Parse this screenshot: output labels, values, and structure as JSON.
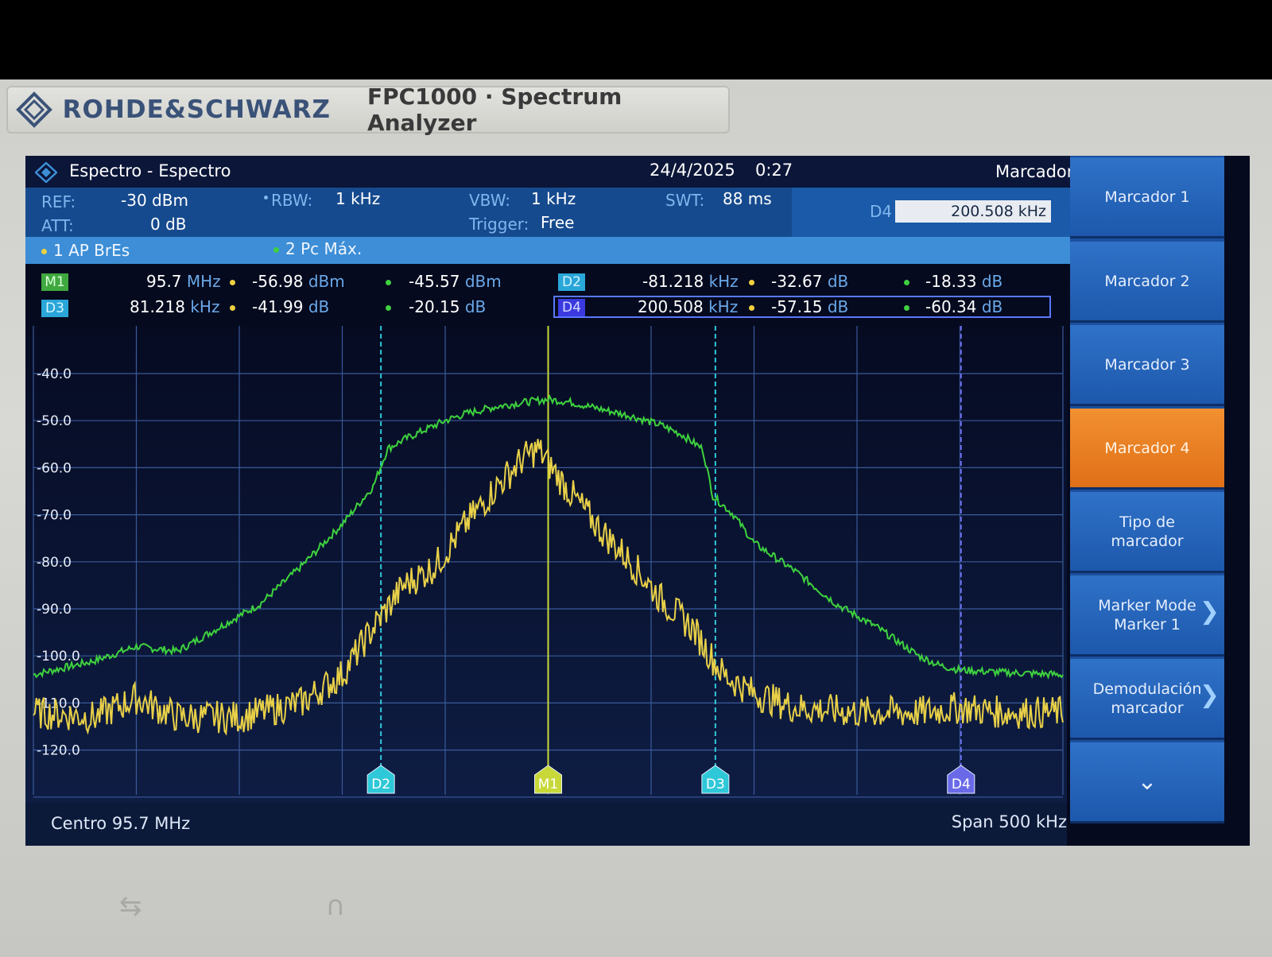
{
  "device": {
    "brand": "ROHDE&SCHWARZ",
    "model": "FPC1000 · Spectrum Analyzer"
  },
  "title_bar": {
    "title": "Espectro - Espectro",
    "date": "24/4/2025",
    "time": "0:27",
    "mode": "Marcador"
  },
  "params": {
    "ref_label": "REF:",
    "ref_value": "-30 dBm",
    "att_label": "ATT:",
    "att_value": "0 dB",
    "rbw_label": "RBW:",
    "rbw_value": "1 kHz",
    "vbw_label": "VBW:",
    "vbw_value": "1 kHz",
    "trigger_label": "Trigger:",
    "trigger_value": "Free",
    "swt_label": "SWT:",
    "swt_value": "88 ms",
    "d4_label": "D4",
    "d4_value": "200.508 kHz"
  },
  "traces": [
    {
      "label": "1 AP BrEs",
      "color": "#f0d040"
    },
    {
      "label": "2 Pc Máx.",
      "color": "#40d040"
    }
  ],
  "markers_table": {
    "m1": {
      "tag": "M1",
      "value": "95.7",
      "unit": "MHz",
      "t1": "-56.98",
      "t1_unit": "dBm",
      "t2": "-45.57",
      "t2_unit": "dBm"
    },
    "d3": {
      "tag": "D3",
      "value": "81.218",
      "unit": "kHz",
      "t1": "-41.99",
      "t1_unit": "dB",
      "t2": "-20.15",
      "t2_unit": "dB"
    },
    "d2": {
      "tag": "D2",
      "value": "-81.218",
      "unit": "kHz",
      "t1": "-32.67",
      "t1_unit": "dB",
      "t2": "-18.33",
      "t2_unit": "dB"
    },
    "d4": {
      "tag": "D4",
      "value": "200.508",
      "unit": "kHz",
      "t1": "-57.15",
      "t1_unit": "dB",
      "t2": "-60.34",
      "t2_unit": "dB"
    }
  },
  "chart_data": {
    "type": "line",
    "y_ticks": [
      "-40.0",
      "-50.0",
      "-60.0",
      "-70.0",
      "-80.0",
      "-90.0",
      "-100.0",
      "-110.0",
      "-120.0"
    ],
    "ylim": [
      -130,
      -30
    ],
    "xlim_khz": [
      -250,
      250
    ],
    "grid": true,
    "series": [
      {
        "name": "2 Pc Máx.",
        "color": "#3ed23e",
        "x_khz": [
          -250,
          -220,
          -200,
          -180,
          -160,
          -140,
          -120,
          -100,
          -85,
          -78,
          -70,
          -60,
          -50,
          -40,
          -25,
          -10,
          0,
          10,
          25,
          40,
          55,
          65,
          75,
          80,
          90,
          100,
          120,
          140,
          160,
          180,
          190,
          200,
          220,
          250
        ],
        "y_db": [
          -104,
          -101,
          -98,
          -99,
          -94,
          -89,
          -81,
          -72,
          -64,
          -56,
          -54,
          -52,
          -50,
          -48.5,
          -47,
          -46,
          -45.5,
          -46,
          -47.5,
          -49,
          -51,
          -53,
          -56,
          -66,
          -70,
          -76,
          -82,
          -89,
          -94,
          -100,
          -102,
          -103,
          -103.5,
          -104
        ]
      },
      {
        "name": "1 AP BrEs",
        "color": "#e8d048",
        "x_khz": [
          -250,
          -220,
          -200,
          -180,
          -150,
          -120,
          -100,
          -85,
          -70,
          -55,
          -40,
          -25,
          -12,
          -5,
          0,
          5,
          12,
          25,
          40,
          55,
          70,
          85,
          100,
          120,
          150,
          180,
          200,
          220,
          250
        ],
        "y_db": [
          -112,
          -113,
          -109,
          -113,
          -113,
          -110,
          -104,
          -94,
          -85,
          -81,
          -72,
          -64,
          -58,
          -56,
          -59,
          -62,
          -66,
          -73,
          -80,
          -88,
          -94,
          -104,
          -108,
          -111,
          -112,
          -112,
          -111,
          -112,
          -112
        ]
      }
    ],
    "markers": [
      {
        "label": "D2",
        "x_khz": -81.218,
        "color": "#2fc8d8"
      },
      {
        "label": "M1",
        "x_khz": 0,
        "color": "#c8d838"
      },
      {
        "label": "D3",
        "x_khz": 81.218,
        "color": "#2fc8d8"
      },
      {
        "label": "D4",
        "x_khz": 200.508,
        "color": "#6a6ae8"
      }
    ]
  },
  "bottom": {
    "center": "Centro 95.7 MHz",
    "span": "Span 500 kHz"
  },
  "softkeys": [
    {
      "label1": "Marcador 1",
      "label2": "",
      "active": false,
      "arrow": ""
    },
    {
      "label1": "Marcador 2",
      "label2": "",
      "active": false,
      "arrow": ""
    },
    {
      "label1": "Marcador 3",
      "label2": "",
      "active": false,
      "arrow": ""
    },
    {
      "label1": "Marcador 4",
      "label2": "",
      "active": true,
      "arrow": ""
    },
    {
      "label1": "Tipo de",
      "label2": "marcador",
      "active": false,
      "arrow": ""
    },
    {
      "label1": "Marker Mode",
      "label2": "Marker 1",
      "active": false,
      "arrow": "❯"
    },
    {
      "label1": "Demodulación",
      "label2": "marcador",
      "active": false,
      "arrow": "❯"
    },
    {
      "label1": "⌄",
      "label2": "",
      "active": false,
      "arrow": ""
    }
  ]
}
